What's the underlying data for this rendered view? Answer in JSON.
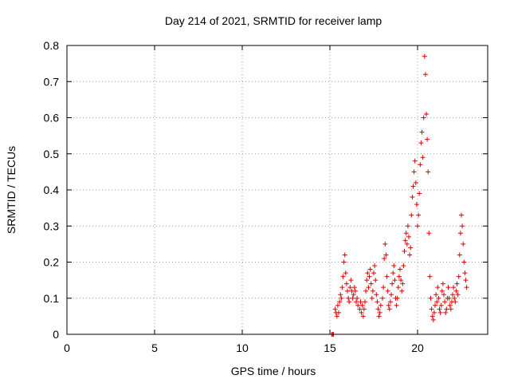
{
  "chart_data": {
    "type": "scatter",
    "title": "Day 214 of 2021, SRMTID for receiver lamp",
    "xlabel": "GPS time / hours",
    "ylabel": "SRMTID / TECUs",
    "xlim": [
      0,
      24
    ],
    "ylim": [
      0,
      0.8
    ],
    "xticks": [
      0,
      5,
      10,
      15,
      20
    ],
    "xtick_labels": [
      "0",
      "5",
      "10",
      "15",
      "20"
    ],
    "yticks": [
      0,
      0.1,
      0.2,
      0.3,
      0.4,
      0.5,
      0.6,
      0.7,
      0.8
    ],
    "ytick_labels": [
      "0",
      "0.1",
      "0.2",
      "0.3",
      "0.4",
      "0.5",
      "0.6",
      "0.7",
      "0.8"
    ],
    "grid": true,
    "marker": "plus",
    "series": [
      {
        "name": "SRMTID",
        "color": "#e00000",
        "points": [
          [
            15.1,
            0.0
          ],
          [
            15.15,
            0.0
          ],
          [
            15.2,
            0.0
          ],
          [
            15.3,
            0.07
          ],
          [
            15.35,
            0.06
          ],
          [
            15.4,
            0.05
          ],
          [
            15.45,
            0.08
          ],
          [
            15.5,
            0.06
          ],
          [
            15.55,
            0.09
          ],
          [
            15.6,
            0.11
          ],
          [
            15.65,
            0.1
          ],
          [
            15.7,
            0.13
          ],
          [
            15.75,
            0.16
          ],
          [
            15.8,
            0.2
          ],
          [
            15.85,
            0.22
          ],
          [
            15.9,
            0.17
          ],
          [
            15.95,
            0.14
          ],
          [
            16.0,
            0.12
          ],
          [
            16.05,
            0.1
          ],
          [
            16.1,
            0.09
          ],
          [
            16.15,
            0.13
          ],
          [
            16.2,
            0.15
          ],
          [
            16.25,
            0.12
          ],
          [
            16.3,
            0.1
          ],
          [
            16.35,
            0.11
          ],
          [
            16.4,
            0.13
          ],
          [
            16.45,
            0.12
          ],
          [
            16.5,
            0.09
          ],
          [
            16.55,
            0.1
          ],
          [
            16.6,
            0.08
          ],
          [
            16.7,
            0.07
          ],
          [
            16.75,
            0.09
          ],
          [
            16.8,
            0.06
          ],
          [
            16.85,
            0.08
          ],
          [
            16.9,
            0.05
          ],
          [
            16.95,
            0.07
          ],
          [
            17.0,
            0.09
          ],
          [
            17.05,
            0.12
          ],
          [
            17.1,
            0.15
          ],
          [
            17.15,
            0.17
          ],
          [
            17.2,
            0.13
          ],
          [
            17.25,
            0.16
          ],
          [
            17.3,
            0.18
          ],
          [
            17.35,
            0.14
          ],
          [
            17.4,
            0.1
          ],
          [
            17.45,
            0.12
          ],
          [
            17.5,
            0.17
          ],
          [
            17.55,
            0.19
          ],
          [
            17.6,
            0.15
          ],
          [
            17.65,
            0.11
          ],
          [
            17.7,
            0.09
          ],
          [
            17.75,
            0.07
          ],
          [
            17.8,
            0.05
          ],
          [
            17.85,
            0.06
          ],
          [
            17.9,
            0.08
          ],
          [
            18.0,
            0.1
          ],
          [
            18.05,
            0.13
          ],
          [
            18.1,
            0.21
          ],
          [
            18.15,
            0.25
          ],
          [
            18.2,
            0.22
          ],
          [
            18.25,
            0.16
          ],
          [
            18.3,
            0.12
          ],
          [
            18.35,
            0.08
          ],
          [
            18.4,
            0.07
          ],
          [
            18.45,
            0.09
          ],
          [
            18.5,
            0.11
          ],
          [
            18.55,
            0.14
          ],
          [
            18.6,
            0.17
          ],
          [
            18.65,
            0.19
          ],
          [
            18.7,
            0.15
          ],
          [
            18.75,
            0.1
          ],
          [
            18.8,
            0.08
          ],
          [
            18.85,
            0.1
          ],
          [
            18.9,
            0.13
          ],
          [
            18.95,
            0.16
          ],
          [
            19.0,
            0.18
          ],
          [
            19.05,
            0.15
          ],
          [
            19.1,
            0.12
          ],
          [
            19.15,
            0.14
          ],
          [
            19.2,
            0.19
          ],
          [
            19.25,
            0.23
          ],
          [
            19.3,
            0.26
          ],
          [
            19.35,
            0.28
          ],
          [
            19.4,
            0.25
          ],
          [
            19.45,
            0.3
          ],
          [
            19.5,
            0.27
          ],
          [
            19.55,
            0.22
          ],
          [
            19.6,
            0.24
          ],
          [
            19.65,
            0.33
          ],
          [
            19.7,
            0.38
          ],
          [
            19.75,
            0.41
          ],
          [
            19.8,
            0.45
          ],
          [
            19.85,
            0.48
          ],
          [
            19.9,
            0.42
          ],
          [
            19.95,
            0.36
          ],
          [
            20.0,
            0.3
          ],
          [
            20.05,
            0.33
          ],
          [
            20.1,
            0.39
          ],
          [
            20.15,
            0.47
          ],
          [
            20.2,
            0.53
          ],
          [
            20.25,
            0.56
          ],
          [
            20.3,
            0.49
          ],
          [
            20.35,
            0.6
          ],
          [
            20.4,
            0.77
          ],
          [
            20.45,
            0.72
          ],
          [
            20.5,
            0.61
          ],
          [
            20.55,
            0.54
          ],
          [
            20.6,
            0.45
          ],
          [
            20.65,
            0.28
          ],
          [
            20.7,
            0.16
          ],
          [
            20.75,
            0.1
          ],
          [
            20.8,
            0.07
          ],
          [
            20.85,
            0.05
          ],
          [
            20.9,
            0.04
          ],
          [
            20.95,
            0.06
          ],
          [
            21.0,
            0.08
          ],
          [
            21.05,
            0.11
          ],
          [
            21.1,
            0.09
          ],
          [
            21.15,
            0.13
          ],
          [
            21.2,
            0.1
          ],
          [
            21.25,
            0.07
          ],
          [
            21.3,
            0.06
          ],
          [
            21.35,
            0.08
          ],
          [
            21.4,
            0.12
          ],
          [
            21.45,
            0.14
          ],
          [
            21.5,
            0.11
          ],
          [
            21.55,
            0.09
          ],
          [
            21.6,
            0.06
          ],
          [
            21.65,
            0.07
          ],
          [
            21.7,
            0.1
          ],
          [
            21.75,
            0.13
          ],
          [
            21.8,
            0.1
          ],
          [
            21.85,
            0.08
          ],
          [
            21.9,
            0.07
          ],
          [
            21.95,
            0.09
          ],
          [
            22.0,
            0.11
          ],
          [
            22.05,
            0.13
          ],
          [
            22.1,
            0.1
          ],
          [
            22.15,
            0.09
          ],
          [
            22.2,
            0.12
          ],
          [
            22.25,
            0.14
          ],
          [
            22.3,
            0.11
          ],
          [
            22.35,
            0.16
          ],
          [
            22.4,
            0.22
          ],
          [
            22.45,
            0.28
          ],
          [
            22.5,
            0.33
          ],
          [
            22.55,
            0.3
          ],
          [
            22.6,
            0.25
          ],
          [
            22.65,
            0.2
          ],
          [
            22.7,
            0.17
          ],
          [
            22.75,
            0.15
          ],
          [
            22.8,
            0.13
          ]
        ]
      }
    ]
  }
}
